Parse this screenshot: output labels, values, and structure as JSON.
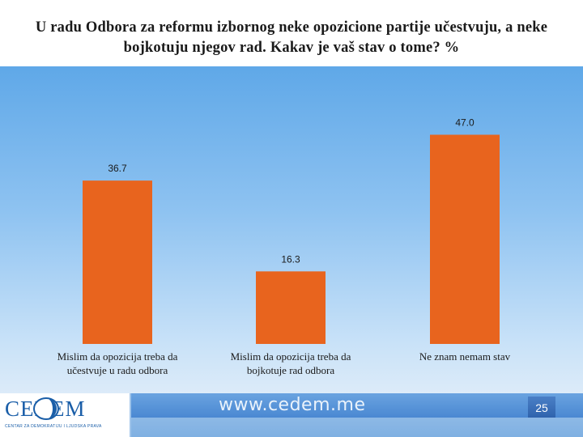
{
  "title": "U radu Odbora za reformu izbornog neke opozicione partije učestvuju, a neke bojkotuju njegov rad. Kakav je vaš stav o tome? %",
  "footer": {
    "logo": "CEDEM",
    "logo_subtitle": "CENTAR ZA DEMOKRATIJU I LJUDSKA PRAVA",
    "website": "www.cedem.me",
    "page_number": "25"
  },
  "colors": {
    "bar": "#e8641e",
    "background_top": "#5fa8e8",
    "background_bottom": "#dcebf9"
  },
  "chart_data": {
    "type": "bar",
    "categories": [
      [
        "Mislim da opozicija treba da",
        "učestvuje u radu odbora"
      ],
      [
        "Mislim da opozicija treba da",
        "bojkotuje rad odbora"
      ],
      [
        "Ne znam nemam stav"
      ]
    ],
    "values": [
      36.7,
      16.3,
      47.0
    ],
    "value_labels": [
      "36.7",
      "16.3",
      "47.0"
    ],
    "ylim": [
      0,
      50
    ],
    "grid": false,
    "legend": "none"
  }
}
